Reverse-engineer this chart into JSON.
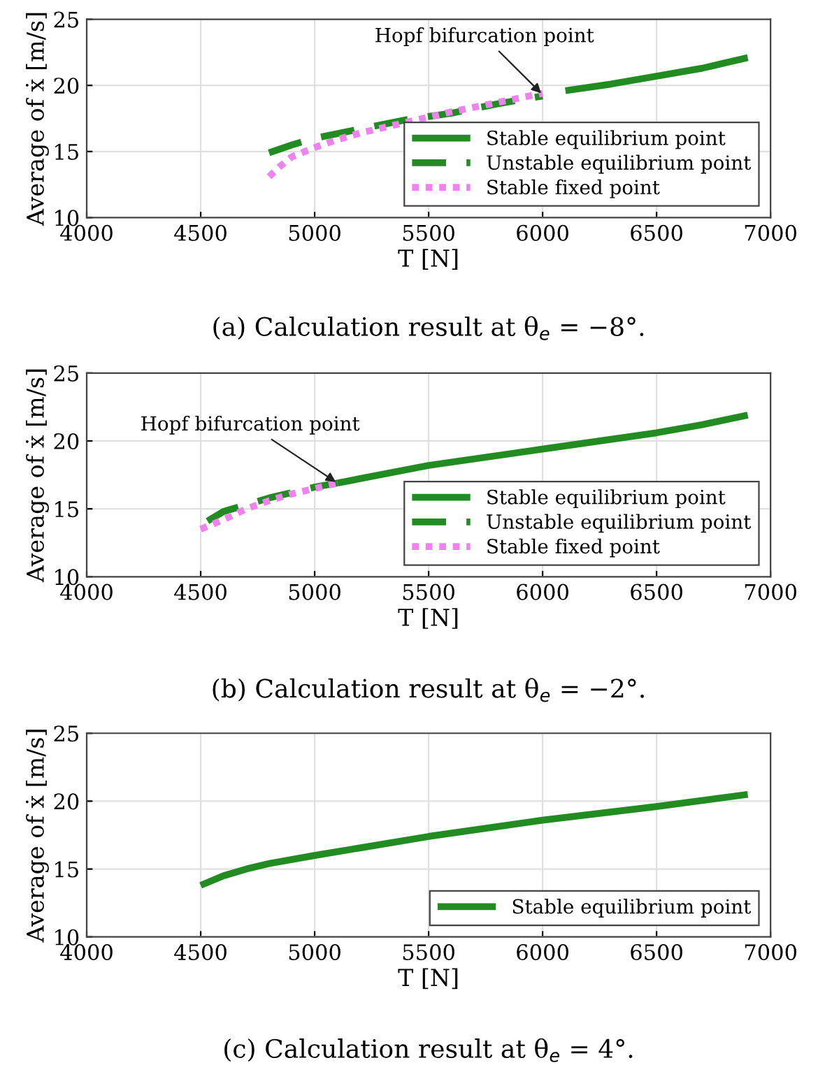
{
  "chart_data": [
    {
      "type": "line",
      "title": "(a) Calculation result at θ$_{e}$ = −8°.",
      "xlabel": "T [N]",
      "ylabel": "Average of ẋ [m/s]",
      "xlim": [
        4000,
        7000
      ],
      "ylim": [
        10,
        25
      ],
      "xticks": [
        4000,
        4500,
        5000,
        5500,
        6000,
        6500,
        7000
      ],
      "yticks": [
        10,
        15,
        20,
        25
      ],
      "grid": true,
      "legend": "bottom right",
      "annotations": [
        {
          "text": "Hopf bifurcation point",
          "x": 6000,
          "y": 19.3
        }
      ],
      "series": [
        {
          "name": "Stable equilibrium point",
          "color": "#228b22",
          "line_style": "solid",
          "x": [
            6100,
            6300,
            6500,
            6700,
            6800,
            6900
          ],
          "values": [
            19.6,
            20.1,
            20.7,
            21.3,
            21.7,
            22.1
          ]
        },
        {
          "name": "Unstable equilibrium point",
          "color": "#228b22",
          "line_style": "dashed",
          "x": [
            4800,
            4900,
            5000,
            5200,
            5400,
            5600,
            5800,
            6000
          ],
          "values": [
            14.9,
            15.5,
            16.0,
            16.7,
            17.4,
            17.9,
            18.6,
            19.2
          ]
        },
        {
          "name": "Stable fixed point",
          "color": "#ee82ee",
          "line_style": "dotted",
          "x": [
            4800,
            4850,
            4900,
            5000,
            5100,
            5200,
            5400,
            5600,
            5800,
            6000
          ],
          "values": [
            13.1,
            13.9,
            14.6,
            15.3,
            15.9,
            16.4,
            17.2,
            18.0,
            18.7,
            19.4
          ]
        }
      ]
    },
    {
      "type": "line",
      "title": "(b) Calculation result at θ$_{e}$ = −2°.",
      "xlabel": "T [N]",
      "ylabel": "Average of ẋ [m/s]",
      "xlim": [
        4000,
        7000
      ],
      "ylim": [
        10,
        25
      ],
      "xticks": [
        4000,
        4500,
        5000,
        5500,
        6000,
        6500,
        7000
      ],
      "yticks": [
        10,
        15,
        20,
        25
      ],
      "grid": true,
      "legend": "bottom right",
      "annotations": [
        {
          "text": "Hopf bifurcation point",
          "x": 5100,
          "y": 16.9
        }
      ],
      "series": [
        {
          "name": "Stable equilibrium point",
          "color": "#228b22",
          "line_style": "solid",
          "x": [
            5100,
            5500,
            6000,
            6500,
            6700,
            6900
          ],
          "values": [
            16.9,
            18.2,
            19.4,
            20.6,
            21.2,
            21.9
          ]
        },
        {
          "name": "Unstable equilibrium point",
          "color": "#228b22",
          "line_style": "dashed",
          "x": [
            4530,
            4600,
            4700,
            4800,
            4900,
            5000,
            5100
          ],
          "values": [
            14.1,
            14.8,
            15.3,
            15.8,
            16.2,
            16.6,
            16.9
          ]
        },
        {
          "name": "Stable fixed point",
          "color": "#ee82ee",
          "line_style": "dotted",
          "x": [
            4500,
            4600,
            4700,
            4800,
            4900,
            5000,
            5100
          ],
          "values": [
            13.5,
            14.2,
            15.0,
            15.6,
            16.1,
            16.5,
            16.9
          ]
        }
      ]
    },
    {
      "type": "line",
      "title": "(c) Calculation result at θ$_{e}$ = 4°.",
      "xlabel": "T [N]",
      "ylabel": "Average of ẋ [m/s]",
      "xlim": [
        4000,
        7000
      ],
      "ylim": [
        10,
        25
      ],
      "xticks": [
        4000,
        4500,
        5000,
        5500,
        6000,
        6500,
        7000
      ],
      "yticks": [
        10,
        15,
        20,
        25
      ],
      "grid": true,
      "legend": "bottom right",
      "series": [
        {
          "name": "Stable equilibrium point",
          "color": "#228b22",
          "line_style": "solid",
          "x": [
            4500,
            4600,
            4700,
            4800,
            5000,
            5500,
            6000,
            6500,
            6900
          ],
          "values": [
            13.8,
            14.5,
            15.0,
            15.4,
            16.0,
            17.4,
            18.6,
            19.6,
            20.5
          ]
        }
      ]
    }
  ]
}
